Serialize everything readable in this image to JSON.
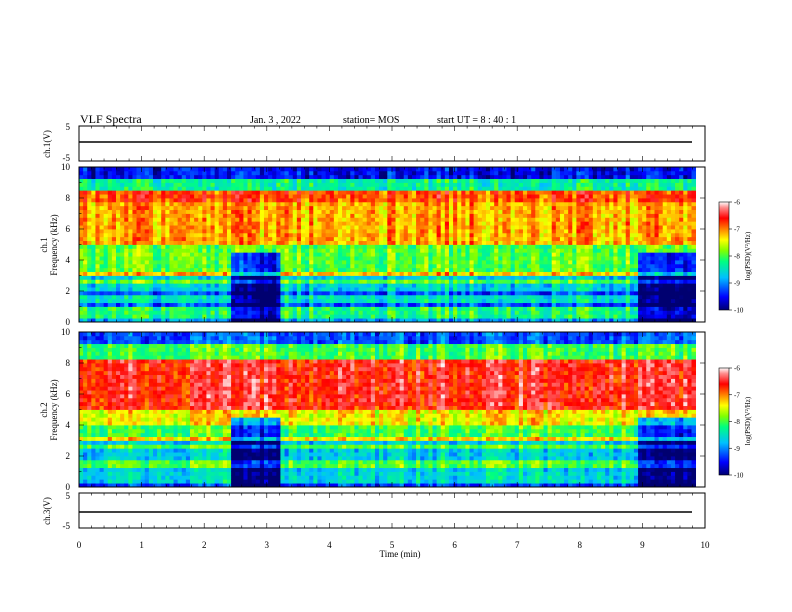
{
  "header": {
    "title": "VLF Spectra",
    "date": "Jan. 3 , 2022",
    "station": "station= MOS",
    "start": "start UT =  8 : 40 : 1"
  },
  "chart_data": [
    {
      "type": "line",
      "name": "ch1-waveform",
      "ylabel": "ch.1(V)",
      "ylim": [
        -5,
        5
      ],
      "yticks": [
        "5",
        "-5"
      ],
      "xlim": [
        0,
        10
      ],
      "x": [
        0,
        9.85
      ],
      "y": [
        0,
        0
      ]
    },
    {
      "type": "heatmap",
      "name": "ch1-spectrogram",
      "ylabel": "ch.1\nFrequency (kHz)",
      "ylabel_line1": "ch.1",
      "ylabel_line2": "Frequency (kHz)",
      "ylim": [
        0,
        10
      ],
      "yticks": [
        "0",
        "2",
        "4",
        "6",
        "8",
        "10"
      ],
      "xlim": [
        0,
        10
      ],
      "data_end_min": 9.85,
      "quiet_intervals_min": [
        [
          2.4,
          3.2
        ],
        [
          8.9,
          9.85
        ]
      ],
      "colorbar": {
        "label": "log(PSD)(V²/Hz)",
        "range": [
          -10,
          -6
        ],
        "ticks": [
          "-6",
          "-7",
          "-8",
          "-9",
          "-10"
        ]
      }
    },
    {
      "type": "heatmap",
      "name": "ch2-spectrogram",
      "ylabel_line1": "ch.2",
      "ylabel_line2": "Frequency (kHz)",
      "ylim": [
        0,
        10
      ],
      "yticks": [
        "0",
        "2",
        "4",
        "6",
        "8",
        "10"
      ],
      "xlim": [
        0,
        10
      ],
      "data_end_min": 9.85,
      "quiet_intervals_min": [
        [
          2.4,
          3.2
        ],
        [
          8.9,
          9.85
        ]
      ],
      "colorbar": {
        "label": "log(PSD)(V²/Hz)",
        "range": [
          -10,
          -6
        ],
        "ticks": [
          "-6",
          "-7",
          "-8",
          "-9",
          "-10"
        ]
      }
    },
    {
      "type": "line",
      "name": "ch3-waveform",
      "ylabel": "ch.3(V)",
      "ylim": [
        -5,
        5
      ],
      "yticks": [
        "5",
        "-5"
      ],
      "xlim": [
        0,
        10
      ],
      "x": [
        0,
        9.85
      ],
      "y": [
        0,
        0
      ]
    }
  ],
  "xaxis": {
    "label": "Time (min)",
    "ticks": [
      "0",
      "1",
      "2",
      "3",
      "4",
      "5",
      "6",
      "7",
      "8",
      "9",
      "10"
    ]
  },
  "colors": {
    "colormap": [
      "#00008b",
      "#0000ff",
      "#00bfff",
      "#00ff7f",
      "#7fff00",
      "#ffff00",
      "#ff7f00",
      "#ff0000",
      "#ff8080",
      "#ffffff"
    ]
  }
}
